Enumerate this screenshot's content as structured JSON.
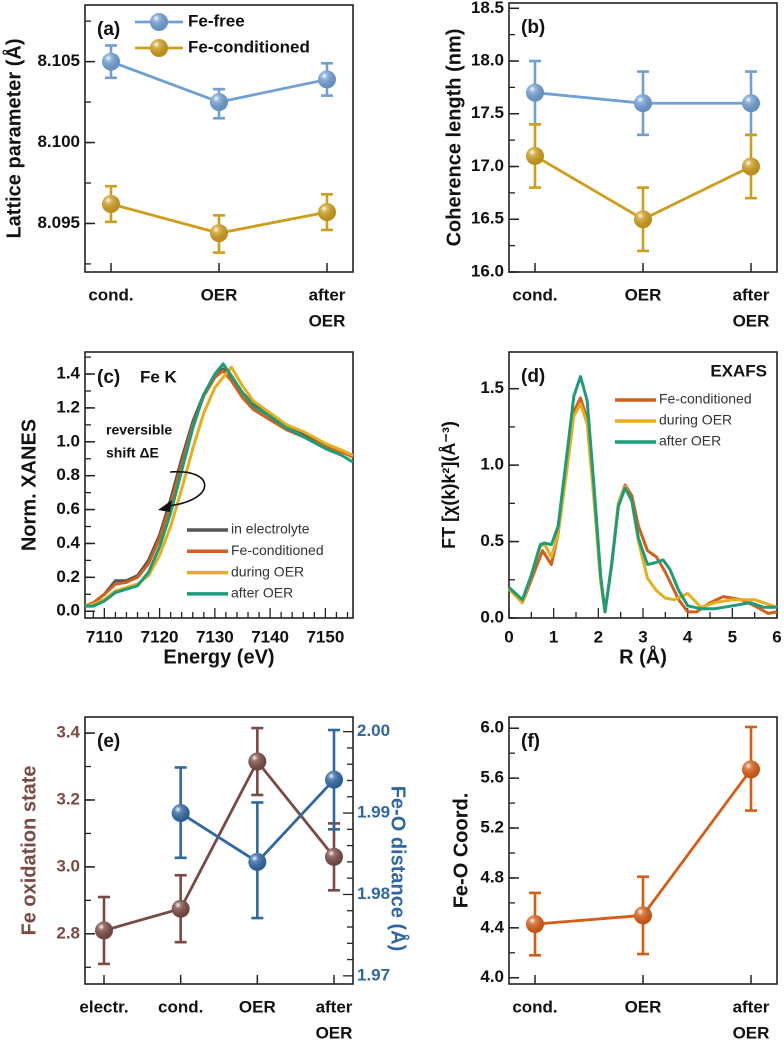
{
  "colors": {
    "fe_free": "#6f9fd4",
    "fe_conditioned": "#cf9d1c",
    "xanes_electrolyte": "#555555",
    "xanes_fe_conditioned": "#d2601c",
    "xanes_during_oer": "#e6ae1c",
    "xanes_after_oer": "#1c9c78",
    "oxidation": "#7b4943",
    "distance": "#2f67a3",
    "coord": "#d65c14"
  },
  "chart_data": [
    {
      "panel_label": "(a)",
      "type": "line",
      "ylabel": "Lattice parameter (Å)",
      "ylim": [
        8.092,
        8.1085
      ],
      "yticks": [
        "8.095",
        "8.100",
        "8.105"
      ],
      "categories": [
        "cond.",
        "OER",
        "after OER"
      ],
      "legend_placement": "top",
      "series": [
        {
          "name": "Fe-free",
          "color_key": "fe_free",
          "values": [
            8.105,
            8.1025,
            8.1039
          ],
          "lower": [
            8.104,
            8.1015,
            8.1029
          ],
          "upper": [
            8.106,
            8.1033,
            8.1049
          ]
        },
        {
          "name": "Fe-conditioned",
          "color_key": "fe_conditioned",
          "values": [
            8.0962,
            8.0944,
            8.0957
          ],
          "lower": [
            8.0951,
            8.0932,
            8.0946
          ],
          "upper": [
            8.0973,
            8.0955,
            8.0968
          ]
        }
      ]
    },
    {
      "panel_label": "(b)",
      "type": "line",
      "ylabel": "Coherence length (nm)",
      "ylim": [
        16.0,
        18.55
      ],
      "yticks": [
        "16.0",
        "16.5",
        "17.0",
        "17.5",
        "18.0",
        "18.5"
      ],
      "categories": [
        "cond.",
        "OER",
        "after OER"
      ],
      "series": [
        {
          "color_key": "fe_free",
          "values": [
            17.7,
            17.6,
            17.6
          ],
          "lower": [
            17.4,
            17.3,
            17.3
          ],
          "upper": [
            18.0,
            17.9,
            17.9
          ]
        },
        {
          "color_key": "fe_conditioned",
          "values": [
            17.1,
            16.5,
            17.0
          ],
          "lower": [
            16.8,
            16.2,
            16.7
          ],
          "upper": [
            17.4,
            16.8,
            17.3
          ]
        }
      ]
    },
    {
      "panel_label": "(c)",
      "title": "Fe K",
      "type": "line",
      "xlabel": "Energy (eV)",
      "ylabel": "Norm. XANES",
      "xlim": [
        7106.5,
        7155
      ],
      "ylim": [
        -0.04,
        1.53
      ],
      "xticks": [
        "7110",
        "7120",
        "7130",
        "7140",
        "7150"
      ],
      "yticks": [
        "0.0",
        "0.2",
        "0.4",
        "0.6",
        "0.8",
        "1.0",
        "1.2",
        "1.4"
      ],
      "annotation": [
        "reversible",
        "shift ΔE"
      ],
      "legend_placement": "bottom-right",
      "series": [
        {
          "name": "in electrolyte",
          "color_key": "xanes_electrolyte",
          "points": [
            [
              7106.5,
              0.03
            ],
            [
              7108,
              0.05
            ],
            [
              7110,
              0.1
            ],
            [
              7112,
              0.18
            ],
            [
              7114,
              0.18
            ],
            [
              7116,
              0.21
            ],
            [
              7118,
              0.3
            ],
            [
              7120,
              0.45
            ],
            [
              7122,
              0.66
            ],
            [
              7124,
              0.9
            ],
            [
              7126,
              1.12
            ],
            [
              7128,
              1.28
            ],
            [
              7130,
              1.39
            ],
            [
              7131.5,
              1.43
            ],
            [
              7133,
              1.38
            ],
            [
              7135,
              1.29
            ],
            [
              7137,
              1.22
            ],
            [
              7140,
              1.16
            ],
            [
              7143,
              1.1
            ],
            [
              7146,
              1.05
            ],
            [
              7150,
              0.98
            ],
            [
              7153,
              0.95
            ],
            [
              7155,
              0.91
            ]
          ]
        },
        {
          "name": "Fe-conditioned",
          "color_key": "xanes_fe_conditioned",
          "points": [
            [
              7106.5,
              0.03
            ],
            [
              7108,
              0.05
            ],
            [
              7110,
              0.1
            ],
            [
              7112,
              0.16
            ],
            [
              7114,
              0.17
            ],
            [
              7116,
              0.2
            ],
            [
              7118,
              0.28
            ],
            [
              7120,
              0.43
            ],
            [
              7122,
              0.63
            ],
            [
              7124,
              0.87
            ],
            [
              7126,
              1.1
            ],
            [
              7128,
              1.27
            ],
            [
              7130,
              1.38
            ],
            [
              7131.5,
              1.42
            ],
            [
              7133,
              1.36
            ],
            [
              7135,
              1.26
            ],
            [
              7137,
              1.19
            ],
            [
              7140,
              1.13
            ],
            [
              7143,
              1.07
            ],
            [
              7146,
              1.03
            ],
            [
              7150,
              0.97
            ],
            [
              7153,
              0.94
            ],
            [
              7155,
              0.91
            ]
          ]
        },
        {
          "name": "during OER",
          "color_key": "xanes_during_oer",
          "points": [
            [
              7106.5,
              0.03
            ],
            [
              7108,
              0.04
            ],
            [
              7110,
              0.07
            ],
            [
              7112,
              0.12
            ],
            [
              7114,
              0.14
            ],
            [
              7116,
              0.16
            ],
            [
              7118,
              0.21
            ],
            [
              7120,
              0.33
            ],
            [
              7122,
              0.5
            ],
            [
              7124,
              0.72
            ],
            [
              7126,
              0.96
            ],
            [
              7128,
              1.17
            ],
            [
              7130,
              1.32
            ],
            [
              7132,
              1.4
            ],
            [
              7133,
              1.44
            ],
            [
              7135,
              1.33
            ],
            [
              7137,
              1.24
            ],
            [
              7140,
              1.17
            ],
            [
              7143,
              1.1
            ],
            [
              7146,
              1.06
            ],
            [
              7150,
              0.99
            ],
            [
              7153,
              0.95
            ],
            [
              7155,
              0.92
            ]
          ]
        },
        {
          "name": "after OER",
          "color_key": "xanes_after_oer",
          "points": [
            [
              7106.5,
              0.03
            ],
            [
              7108,
              0.03
            ],
            [
              7110,
              0.06
            ],
            [
              7112,
              0.11
            ],
            [
              7114,
              0.13
            ],
            [
              7116,
              0.15
            ],
            [
              7118,
              0.23
            ],
            [
              7120,
              0.38
            ],
            [
              7122,
              0.58
            ],
            [
              7124,
              0.83
            ],
            [
              7126,
              1.08
            ],
            [
              7128,
              1.28
            ],
            [
              7130,
              1.4
            ],
            [
              7131.5,
              1.46
            ],
            [
              7133,
              1.39
            ],
            [
              7135,
              1.29
            ],
            [
              7137,
              1.21
            ],
            [
              7140,
              1.15
            ],
            [
              7143,
              1.08
            ],
            [
              7146,
              1.03
            ],
            [
              7150,
              0.96
            ],
            [
              7153,
              0.92
            ],
            [
              7155,
              0.88
            ]
          ]
        }
      ]
    },
    {
      "panel_label": "(d)",
      "title": "EXAFS",
      "type": "line",
      "xlabel": "R (Å)",
      "ylabel": "FT [χ(k)k²](Å⁻³)",
      "xlim": [
        0,
        6
      ],
      "ylim": [
        0,
        1.74
      ],
      "xticks": [
        "0",
        "1",
        "2",
        "3",
        "4",
        "5",
        "6"
      ],
      "yticks": [
        "0.0",
        "0.5",
        "1.0",
        "1.5"
      ],
      "legend_placement": "top-right",
      "series": [
        {
          "name": "Fe-conditioned",
          "color_key": "xanes_fe_conditioned",
          "points": [
            [
              0,
              0.19
            ],
            [
              0.3,
              0.1
            ],
            [
              0.5,
              0.25
            ],
            [
              0.75,
              0.44
            ],
            [
              0.95,
              0.35
            ],
            [
              1.1,
              0.55
            ],
            [
              1.3,
              1.0
            ],
            [
              1.45,
              1.35
            ],
            [
              1.6,
              1.44
            ],
            [
              1.75,
              1.3
            ],
            [
              1.9,
              0.8
            ],
            [
              2.05,
              0.25
            ],
            [
              2.15,
              0.04
            ],
            [
              2.3,
              0.35
            ],
            [
              2.45,
              0.75
            ],
            [
              2.6,
              0.87
            ],
            [
              2.75,
              0.8
            ],
            [
              2.9,
              0.6
            ],
            [
              3.1,
              0.44
            ],
            [
              3.3,
              0.4
            ],
            [
              3.5,
              0.3
            ],
            [
              3.8,
              0.12
            ],
            [
              4.0,
              0.04
            ],
            [
              4.2,
              0.04
            ],
            [
              4.5,
              0.1
            ],
            [
              4.8,
              0.14
            ],
            [
              5.2,
              0.12
            ],
            [
              5.5,
              0.08
            ],
            [
              5.8,
              0.03
            ],
            [
              6.0,
              0.04
            ]
          ]
        },
        {
          "name": "during OER",
          "color_key": "xanes_during_oer",
          "points": [
            [
              0,
              0.19
            ],
            [
              0.3,
              0.1
            ],
            [
              0.5,
              0.28
            ],
            [
              0.7,
              0.47
            ],
            [
              0.8,
              0.48
            ],
            [
              0.95,
              0.4
            ],
            [
              1.1,
              0.55
            ],
            [
              1.3,
              0.98
            ],
            [
              1.45,
              1.32
            ],
            [
              1.6,
              1.4
            ],
            [
              1.75,
              1.27
            ],
            [
              1.9,
              0.78
            ],
            [
              2.05,
              0.24
            ],
            [
              2.15,
              0.04
            ],
            [
              2.3,
              0.36
            ],
            [
              2.45,
              0.75
            ],
            [
              2.6,
              0.86
            ],
            [
              2.75,
              0.76
            ],
            [
              2.9,
              0.5
            ],
            [
              3.1,
              0.26
            ],
            [
              3.3,
              0.18
            ],
            [
              3.5,
              0.13
            ],
            [
              3.7,
              0.12
            ],
            [
              4.0,
              0.16
            ],
            [
              4.3,
              0.07
            ],
            [
              4.6,
              0.1
            ],
            [
              5.0,
              0.12
            ],
            [
              5.5,
              0.12
            ],
            [
              6.0,
              0.07
            ]
          ]
        },
        {
          "name": "after OER",
          "color_key": "xanes_after_oer",
          "points": [
            [
              0,
              0.2
            ],
            [
              0.3,
              0.12
            ],
            [
              0.5,
              0.28
            ],
            [
              0.7,
              0.48
            ],
            [
              0.8,
              0.49
            ],
            [
              0.95,
              0.48
            ],
            [
              1.1,
              0.6
            ],
            [
              1.3,
              1.08
            ],
            [
              1.45,
              1.45
            ],
            [
              1.6,
              1.58
            ],
            [
              1.75,
              1.42
            ],
            [
              1.9,
              0.87
            ],
            [
              2.05,
              0.28
            ],
            [
              2.15,
              0.04
            ],
            [
              2.3,
              0.35
            ],
            [
              2.45,
              0.73
            ],
            [
              2.6,
              0.85
            ],
            [
              2.75,
              0.77
            ],
            [
              2.9,
              0.52
            ],
            [
              3.1,
              0.35
            ],
            [
              3.25,
              0.36
            ],
            [
              3.45,
              0.38
            ],
            [
              3.6,
              0.32
            ],
            [
              3.8,
              0.18
            ],
            [
              4.0,
              0.08
            ],
            [
              4.3,
              0.06
            ],
            [
              4.6,
              0.06
            ],
            [
              5.0,
              0.08
            ],
            [
              5.4,
              0.1
            ],
            [
              5.7,
              0.07
            ],
            [
              6.0,
              0.07
            ]
          ]
        }
      ]
    },
    {
      "panel_label": "(e)",
      "type": "line",
      "ylabel": "Fe oxidation state",
      "y2label": "Fe-O distance (Å)",
      "ylim": [
        2.65,
        3.448
      ],
      "y2lim": [
        1.969,
        2.0018
      ],
      "yticks": [
        "2.8",
        "3.0",
        "3.2",
        "3.4"
      ],
      "y2ticks": [
        "1.97",
        "1.98",
        "1.99",
        "2.00"
      ],
      "categories": [
        "electr.",
        "cond.",
        "OER",
        "after OER"
      ],
      "series": [
        {
          "axis": "left",
          "color_key": "oxidation",
          "values": [
            2.81,
            2.875,
            3.315,
            3.03
          ],
          "lower": [
            2.71,
            2.775,
            3.215,
            2.93
          ],
          "upper": [
            2.91,
            2.975,
            3.415,
            3.13
          ]
        },
        {
          "axis": "right",
          "color_key": "distance",
          "values": [
            null,
            1.99,
            1.984,
            1.9941
          ],
          "lower": [
            null,
            1.9845,
            1.9771,
            1.988
          ],
          "upper": [
            null,
            1.9956,
            1.9913,
            2.0002
          ]
        }
      ]
    },
    {
      "panel_label": "(f)",
      "type": "line",
      "ylabel": "Fe-O Coord.",
      "ylim": [
        3.95,
        6.09
      ],
      "yticks": [
        "4.0",
        "4.4",
        "4.8",
        "5.2",
        "5.6",
        "6.0"
      ],
      "categories": [
        "cond.",
        "OER",
        "after OER"
      ],
      "series": [
        {
          "color_key": "coord",
          "values": [
            4.43,
            4.5,
            5.67
          ],
          "lower": [
            4.18,
            4.19,
            5.34
          ],
          "upper": [
            4.68,
            4.81,
            6.01
          ]
        }
      ]
    }
  ]
}
